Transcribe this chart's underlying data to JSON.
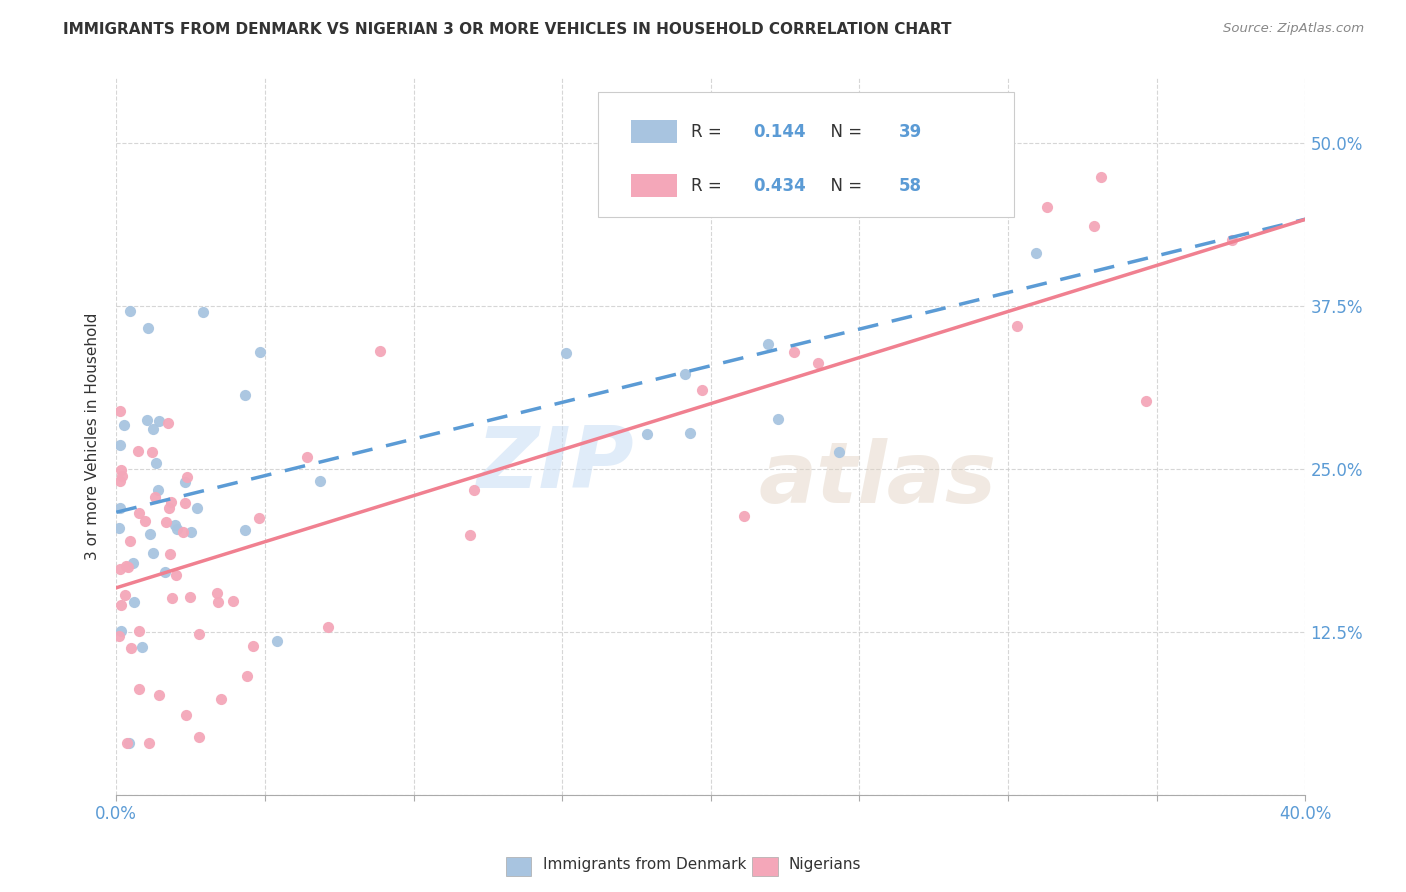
{
  "title": "IMMIGRANTS FROM DENMARK VS NIGERIAN 3 OR MORE VEHICLES IN HOUSEHOLD CORRELATION CHART",
  "source": "Source: ZipAtlas.com",
  "ylabel": "3 or more Vehicles in Household",
  "xlim": [
    0.0,
    0.4
  ],
  "ylim": [
    0.0,
    0.55
  ],
  "denmark_R": 0.144,
  "denmark_N": 39,
  "nigerian_R": 0.434,
  "nigerian_N": 58,
  "denmark_color": "#a8c4e0",
  "nigerian_color": "#f4a7b9",
  "denmark_line_color": "#5b9bd5",
  "nigerian_line_color": "#f08090",
  "legend_label_denmark": "Immigrants from Denmark",
  "legend_label_nigerian": "Nigerians",
  "background_color": "#ffffff",
  "watermark_zip": "ZIP",
  "watermark_atlas": "atlas",
  "text_color_blue": "#5b9bd5",
  "text_color_dark": "#333333",
  "text_color_gray": "#888888",
  "grid_color": "#cccccc"
}
